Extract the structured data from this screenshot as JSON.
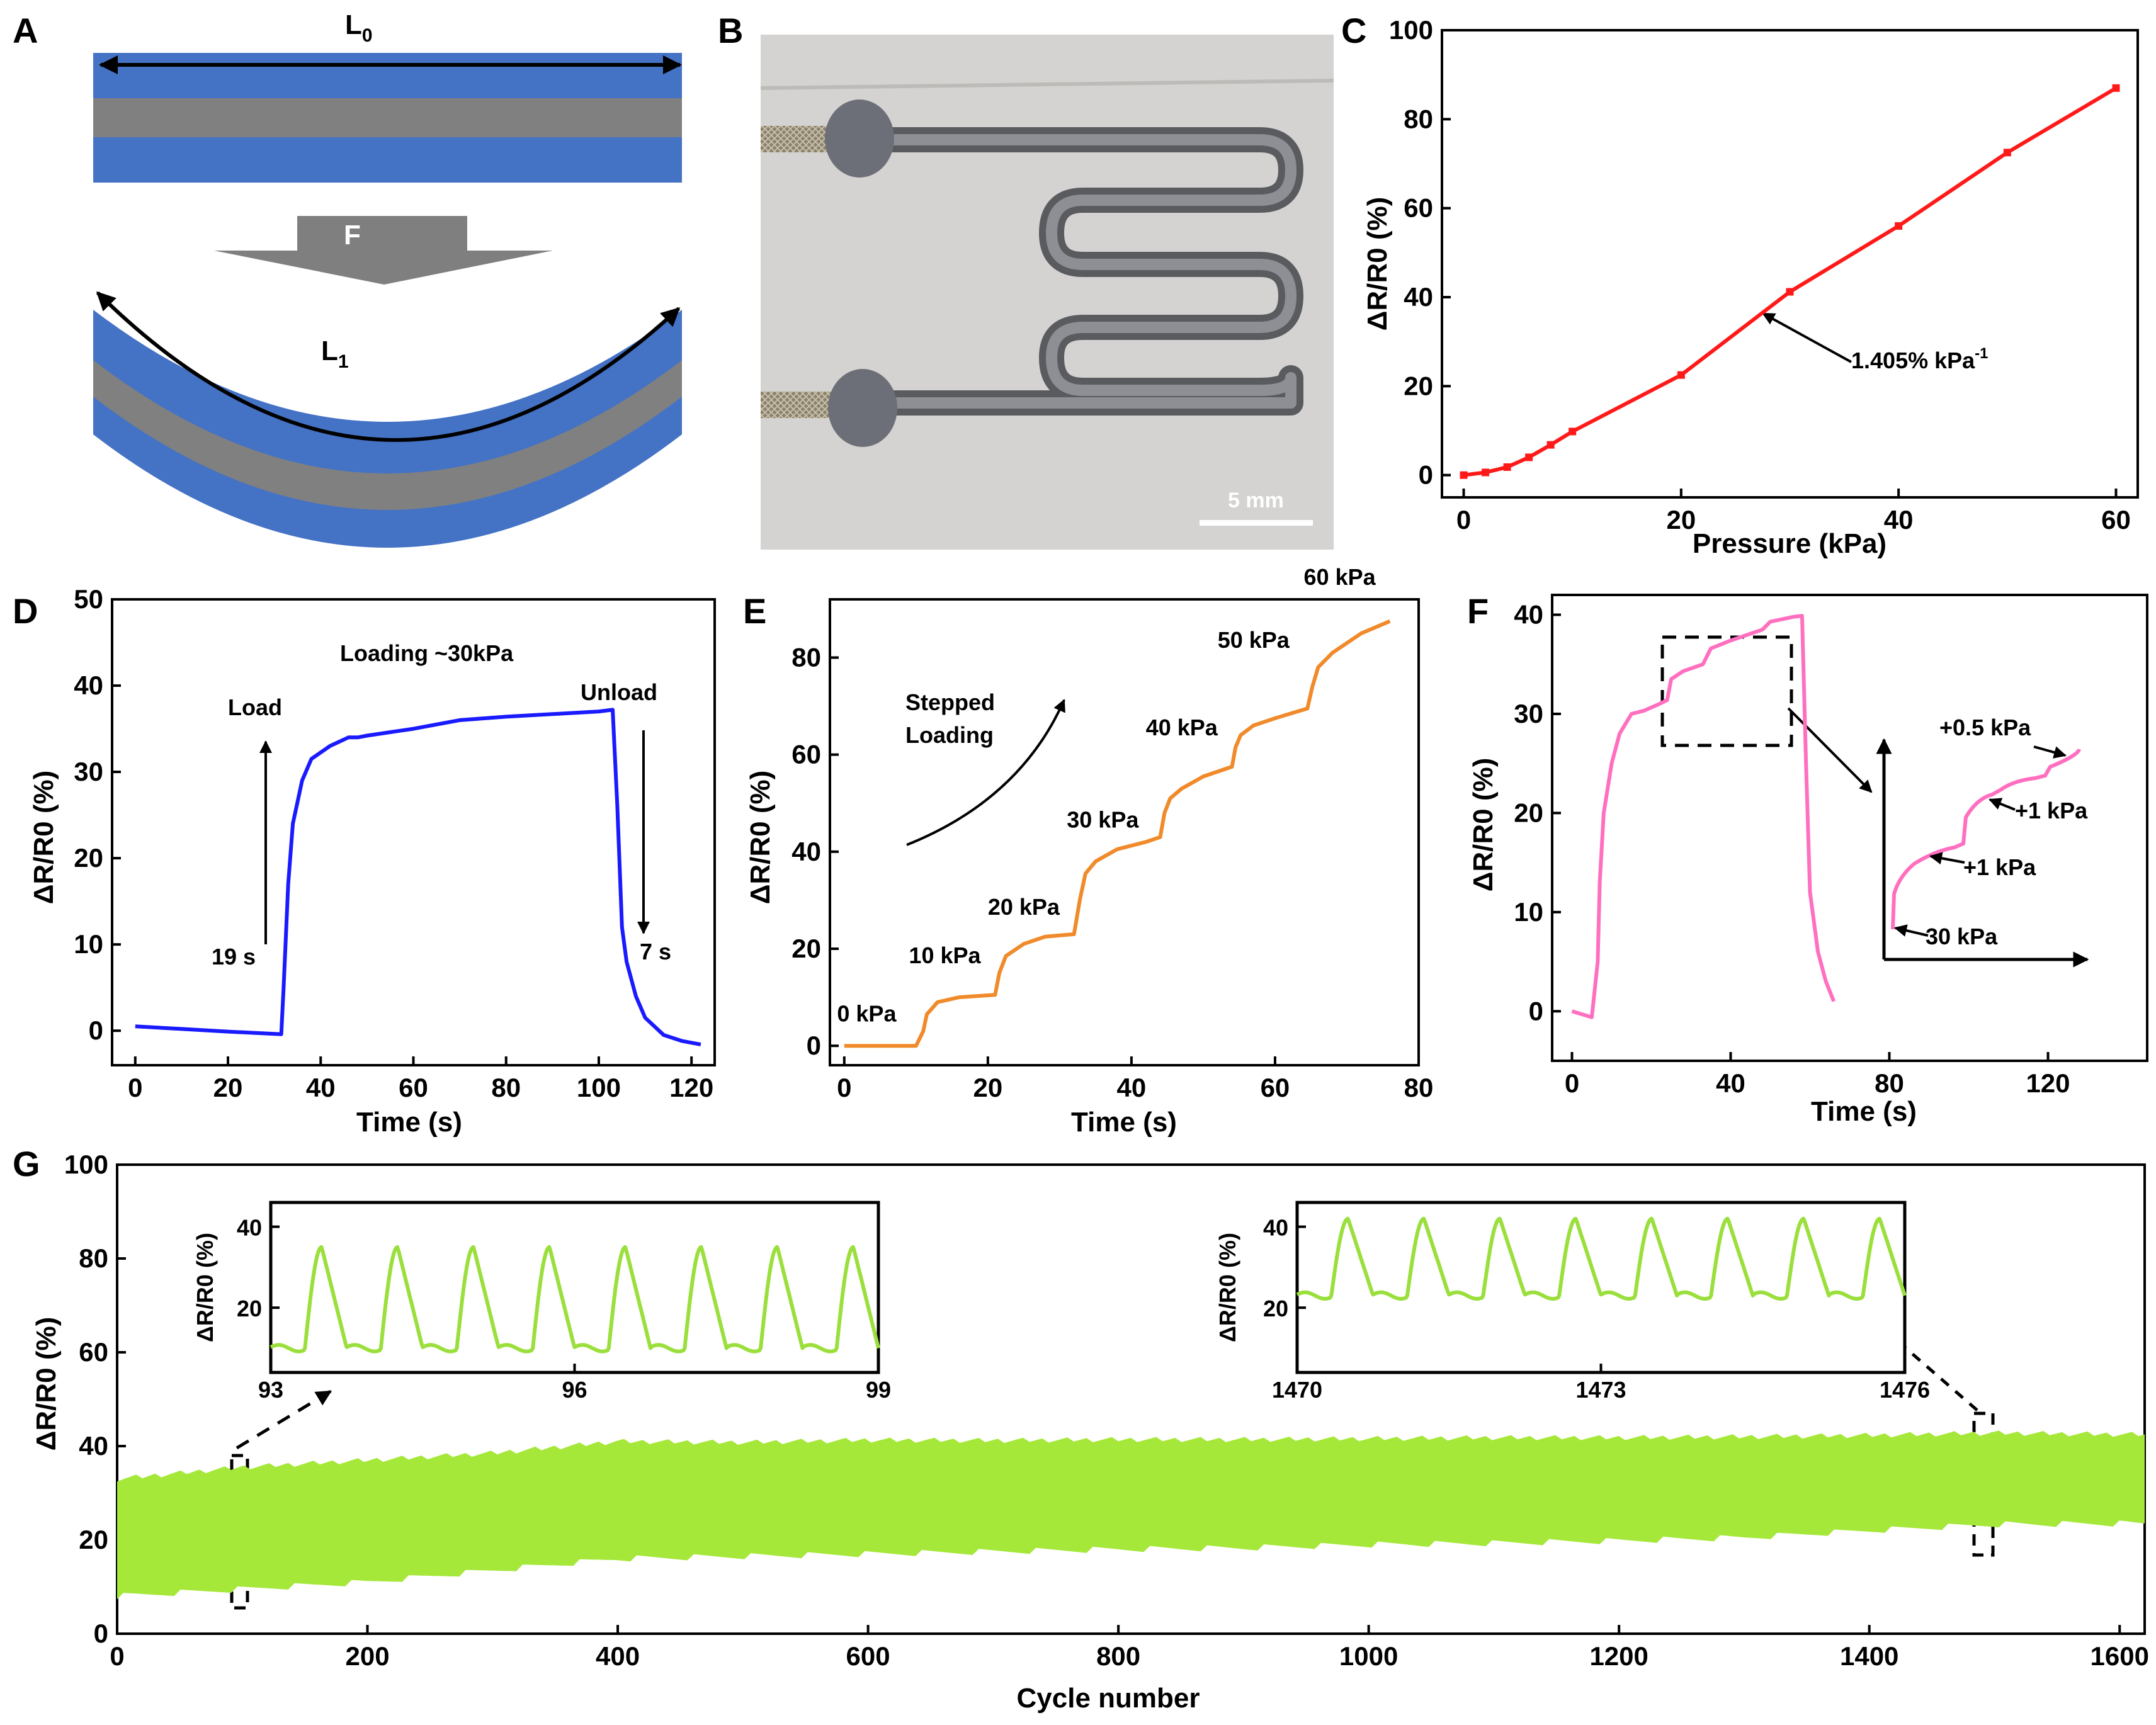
{
  "panel_labels": [
    "A",
    "B",
    "C",
    "D",
    "E",
    "F",
    "G"
  ],
  "colors": {
    "blue_layer": "#4472C4",
    "gray_layer": "#808080",
    "arrow_gray": "#7f7f7f",
    "c_line": "#ff1a1a",
    "d_line": "#1a1aff",
    "e_line": "#f08a2a",
    "f_line": "#ff6fc0",
    "g_fill": "#a5e83a",
    "g_line": "#9adf3c"
  },
  "panel_a": {
    "length_label_top_main": "L",
    "length_label_top_sub": "0",
    "force_label": "F",
    "length_label_bottom_main": "L",
    "length_label_bottom_sub": "1"
  },
  "panel_b": {
    "scale_bar_label": "5 mm"
  },
  "panel_c": {
    "annotation_main": "1.405% kPa",
    "annotation_sup": "-1"
  },
  "panel_d": {
    "title": "Loading ~30kPa",
    "load_label": "Load",
    "unload_label": "Unload",
    "load_time": "19 s",
    "unload_time": "7 s"
  },
  "panel_e": {
    "stepped_line1": "Stepped",
    "stepped_line2": "Loading",
    "step_labels": [
      "0 kPa",
      "10 kPa",
      "20 kPa",
      "30 kPa",
      "40 kPa",
      "50 kPa",
      "60 kPa"
    ]
  },
  "panel_f": {
    "inset_labels": [
      "+0.5 kPa",
      "+1 kPa",
      "+1 kPa",
      "30 kPa"
    ]
  },
  "chart_data": [
    {
      "id": "C",
      "type": "line",
      "xlabel": "Pressure (kPa)",
      "ylabel": "ΔR/R0 (%)",
      "xlim": [
        -2,
        62
      ],
      "ylim": [
        -5,
        100
      ],
      "xticks": [
        0,
        20,
        40,
        60
      ],
      "yticks": [
        0,
        20,
        40,
        60,
        80,
        100
      ],
      "x": [
        0,
        2,
        4,
        6,
        8,
        10,
        20,
        30,
        40,
        50,
        60
      ],
      "y": [
        0,
        0.6,
        1.8,
        4,
        6.8,
        9.8,
        22.5,
        41.2,
        56,
        72.5,
        87
      ]
    },
    {
      "id": "D",
      "type": "line",
      "xlabel": "Time (s)",
      "ylabel": "ΔR/R0 (%)",
      "xlim": [
        -5,
        125
      ],
      "ylim": [
        -4,
        50
      ],
      "xticks": [
        0,
        20,
        40,
        60,
        80,
        100,
        120
      ],
      "yticks": [
        0,
        10,
        20,
        30,
        40,
        50
      ],
      "x": [
        0,
        10,
        20,
        31.5,
        32,
        33,
        34,
        36,
        38,
        42,
        46,
        48,
        50,
        55,
        60,
        70,
        80,
        90,
        100,
        103,
        104,
        105,
        106,
        108,
        110,
        114,
        118,
        122
      ],
      "y": [
        0.5,
        0.2,
        -0.1,
        -0.4,
        5,
        17,
        24,
        29,
        31.5,
        33,
        34,
        34,
        34.2,
        34.6,
        35,
        36,
        36.4,
        36.7,
        37,
        37.2,
        26,
        12,
        8,
        4,
        1.5,
        -0.5,
        -1.2,
        -1.6
      ]
    },
    {
      "id": "E",
      "type": "line",
      "xlabel": "Time (s)",
      "ylabel": "ΔR/R0 (%)",
      "xlim": [
        -2,
        80
      ],
      "ylim": [
        -4,
        92
      ],
      "xticks": [
        0,
        20,
        40,
        60,
        80
      ],
      "yticks": [
        0,
        20,
        40,
        60,
        80
      ],
      "x": [
        0,
        10,
        11,
        11.5,
        13,
        16,
        21,
        21.6,
        22.5,
        25,
        28,
        32,
        32.8,
        33.6,
        35,
        38,
        42,
        44,
        44.6,
        45.4,
        47,
        50,
        54,
        54.5,
        55.2,
        57,
        60,
        64.5,
        65.2,
        66,
        68,
        72,
        76
      ],
      "y": [
        0,
        0,
        3,
        6.5,
        9,
        10,
        10.5,
        15,
        18.5,
        21,
        22.5,
        23,
        30,
        35.5,
        38,
        40.5,
        42,
        43,
        48,
        51,
        53,
        55.5,
        57.5,
        61.5,
        64,
        66,
        67.5,
        69.5,
        74,
        78,
        81,
        85,
        87.5
      ]
    },
    {
      "id": "F",
      "type": "line",
      "xlabel": "Time (s)",
      "ylabel": "ΔR/R0 (%)",
      "xlim": [
        -5,
        145
      ],
      "ylim": [
        -5,
        42
      ],
      "xticks": [
        0,
        40,
        80,
        120
      ],
      "yticks": [
        0,
        10,
        20,
        30,
        40
      ],
      "x": [
        0,
        5,
        6.5,
        7,
        8,
        10,
        12,
        15,
        18,
        22,
        24,
        25,
        28,
        33,
        35,
        40,
        48,
        50,
        56,
        58,
        59,
        60,
        62,
        64,
        66
      ],
      "y": [
        0,
        -0.6,
        5,
        13,
        20,
        25,
        28,
        30,
        30.3,
        31,
        31.4,
        33.5,
        34.3,
        35,
        36.6,
        37.4,
        38.5,
        39.3,
        39.8,
        39.9,
        25,
        12,
        6,
        3,
        1
      ]
    },
    {
      "id": "G",
      "type": "area",
      "xlabel": "Cycle number",
      "ylabel": "ΔR/R0 (%)",
      "xlim": [
        0,
        1620
      ],
      "ylim": [
        0,
        100
      ],
      "xticks": [
        0,
        200,
        400,
        600,
        800,
        1000,
        1200,
        1400,
        1600
      ],
      "yticks": [
        0,
        20,
        40,
        60,
        80,
        100
      ],
      "x": [
        0,
        100,
        200,
        300,
        400,
        500,
        600,
        700,
        800,
        900,
        1000,
        1100,
        1200,
        1300,
        1400,
        1500,
        1600,
        1620
      ],
      "upper": [
        33,
        35.5,
        37,
        38.5,
        41,
        40.8,
        41.3,
        41.2,
        41.4,
        41.4,
        41.6,
        41.8,
        41.8,
        42,
        42.3,
        42.8,
        42.5,
        42.5
      ],
      "lower": [
        8,
        9.5,
        11,
        13.5,
        16,
        16.5,
        17,
        17.5,
        18,
        18.3,
        19,
        19.3,
        19.8,
        20.5,
        22,
        23.3,
        23.5,
        23.5
      ]
    },
    {
      "id": "G-inset-1",
      "type": "line",
      "ylabel": "ΔR/R0 (%)",
      "xlim": [
        93,
        99
      ],
      "ylim": [
        4,
        46
      ],
      "xticks": [
        93,
        96,
        99
      ],
      "yticks": [
        20,
        40
      ],
      "period": 0.75,
      "baseline": 10,
      "peak": 35
    },
    {
      "id": "G-inset-2",
      "type": "line",
      "ylabel": "ΔR/R0 (%)",
      "xlim": [
        1470,
        1476
      ],
      "ylim": [
        4,
        46
      ],
      "xticks": [
        1470,
        1473,
        1476
      ],
      "yticks": [
        20,
        40
      ],
      "period": 0.75,
      "baseline": 23,
      "peak": 42
    }
  ]
}
